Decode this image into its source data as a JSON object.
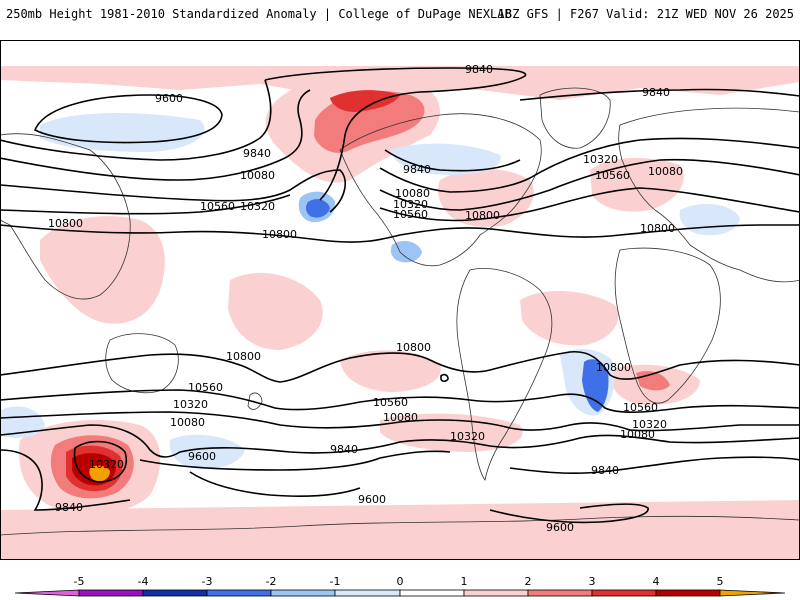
{
  "header": {
    "title": "250mb Height 1981-2010 Standardized Anomaly | College of DuPage NEXLAB",
    "model_info": "18Z GFS | F267 Valid: 21Z WED NOV 26 2025"
  },
  "contour_labels": [
    {
      "id": "n1",
      "text": "9840"
    },
    {
      "id": "n2",
      "text": "9600"
    },
    {
      "id": "n3",
      "text": "9840"
    },
    {
      "id": "n4",
      "text": "9840"
    },
    {
      "id": "n5",
      "text": "10080"
    },
    {
      "id": "n6",
      "text": "10560"
    },
    {
      "id": "n7",
      "text": "10320"
    },
    {
      "id": "n8",
      "text": "10800"
    },
    {
      "id": "n9",
      "text": "10800"
    },
    {
      "id": "n10",
      "text": "9840"
    },
    {
      "id": "n11",
      "text": "10080"
    },
    {
      "id": "n12",
      "text": "10320"
    },
    {
      "id": "n13",
      "text": "10560"
    },
    {
      "id": "n14",
      "text": "10800"
    },
    {
      "id": "n15",
      "text": "10320"
    },
    {
      "id": "n16",
      "text": "10560"
    },
    {
      "id": "n17",
      "text": "10080"
    },
    {
      "id": "n18",
      "text": "10800"
    },
    {
      "id": "s1",
      "text": "10800"
    },
    {
      "id": "s2",
      "text": "10800"
    },
    {
      "id": "s3",
      "text": "10800"
    },
    {
      "id": "s4",
      "text": "10560"
    },
    {
      "id": "s5",
      "text": "10320"
    },
    {
      "id": "s6",
      "text": "10080"
    },
    {
      "id": "s7",
      "text": "9600"
    },
    {
      "id": "s8",
      "text": "10320"
    },
    {
      "id": "s9",
      "text": "9840"
    },
    {
      "id": "s10",
      "text": "10560"
    },
    {
      "id": "s11",
      "text": "10080"
    },
    {
      "id": "s12",
      "text": "10320"
    },
    {
      "id": "s13",
      "text": "9840"
    },
    {
      "id": "s14",
      "text": "9600"
    },
    {
      "id": "s15",
      "text": "10560"
    },
    {
      "id": "s16",
      "text": "10320"
    },
    {
      "id": "s17",
      "text": "10080"
    },
    {
      "id": "s18",
      "text": "9840"
    },
    {
      "id": "s19",
      "text": "9600"
    }
  ],
  "colorbar": {
    "ticks": [
      "-5",
      "-4",
      "-3",
      "-2",
      "-1",
      "0",
      "1",
      "2",
      "3",
      "4",
      "5"
    ],
    "colors": {
      "below_min": "#e060e0",
      "m5_m4": "#9a10c0",
      "m4_m3": "#1030a8",
      "m3_m2": "#4070e8",
      "m2_m1": "#9cc4f4",
      "m1_0": "#d8e8fa",
      "0_1": "#ffffff",
      "1_2": "#fbd0d0",
      "2_3": "#f27b7b",
      "3_4": "#e03030",
      "4_5": "#b80000",
      "above_max": "#f4a000"
    }
  }
}
